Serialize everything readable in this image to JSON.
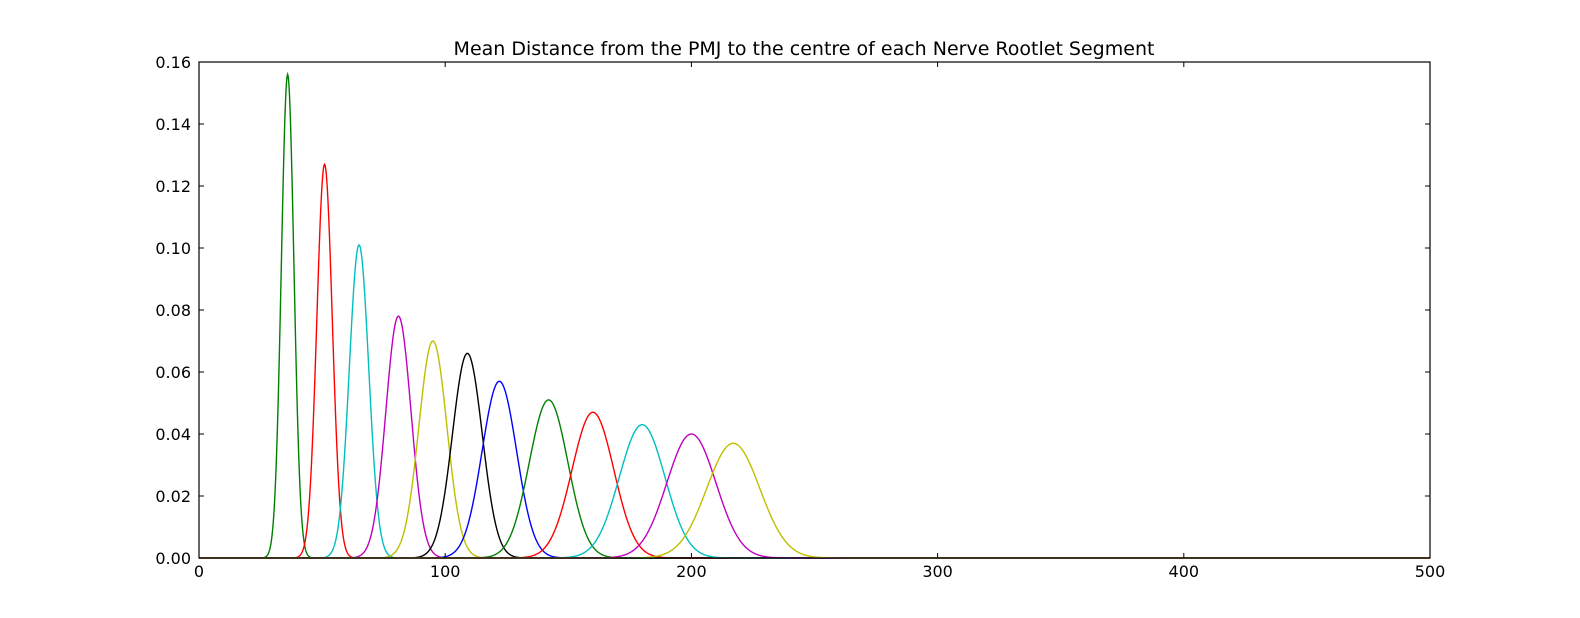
{
  "chart_data": {
    "type": "line",
    "title": "Mean Distance from the PMJ to the centre of each Nerve Rootlet Segment",
    "xlabel": "",
    "ylabel": "",
    "xlim": [
      0,
      500
    ],
    "ylim": [
      0,
      0.16
    ],
    "xticks": [
      "0",
      "100",
      "200",
      "300",
      "400",
      "500"
    ],
    "yticks": [
      "0.00",
      "0.02",
      "0.04",
      "0.06",
      "0.08",
      "0.10",
      "0.12",
      "0.14",
      "0.16"
    ],
    "grid": false,
    "legend": "none",
    "series": [
      {
        "type": "gaussian",
        "mean": 36,
        "peak": 0.156,
        "color": "#008000"
      },
      {
        "type": "gaussian",
        "mean": 51,
        "peak": 0.127,
        "color": "#ff0000"
      },
      {
        "type": "gaussian",
        "mean": 65,
        "peak": 0.101,
        "color": "#00bfbf"
      },
      {
        "type": "gaussian",
        "mean": 81,
        "peak": 0.078,
        "color": "#bf00bf"
      },
      {
        "type": "gaussian",
        "mean": 95,
        "peak": 0.07,
        "color": "#bfbf00"
      },
      {
        "type": "gaussian",
        "mean": 109,
        "peak": 0.066,
        "color": "#000000"
      },
      {
        "type": "gaussian",
        "mean": 122,
        "peak": 0.057,
        "color": "#0000ff"
      },
      {
        "type": "gaussian",
        "mean": 142,
        "peak": 0.051,
        "color": "#008000"
      },
      {
        "type": "gaussian",
        "mean": 160,
        "peak": 0.047,
        "color": "#ff0000"
      },
      {
        "type": "gaussian",
        "mean": 180,
        "peak": 0.043,
        "color": "#00bfbf"
      },
      {
        "type": "gaussian",
        "mean": 200,
        "peak": 0.04,
        "color": "#bf00bf"
      },
      {
        "type": "gaussian",
        "mean": 217,
        "peak": 0.037,
        "color": "#bfbf00"
      }
    ]
  }
}
